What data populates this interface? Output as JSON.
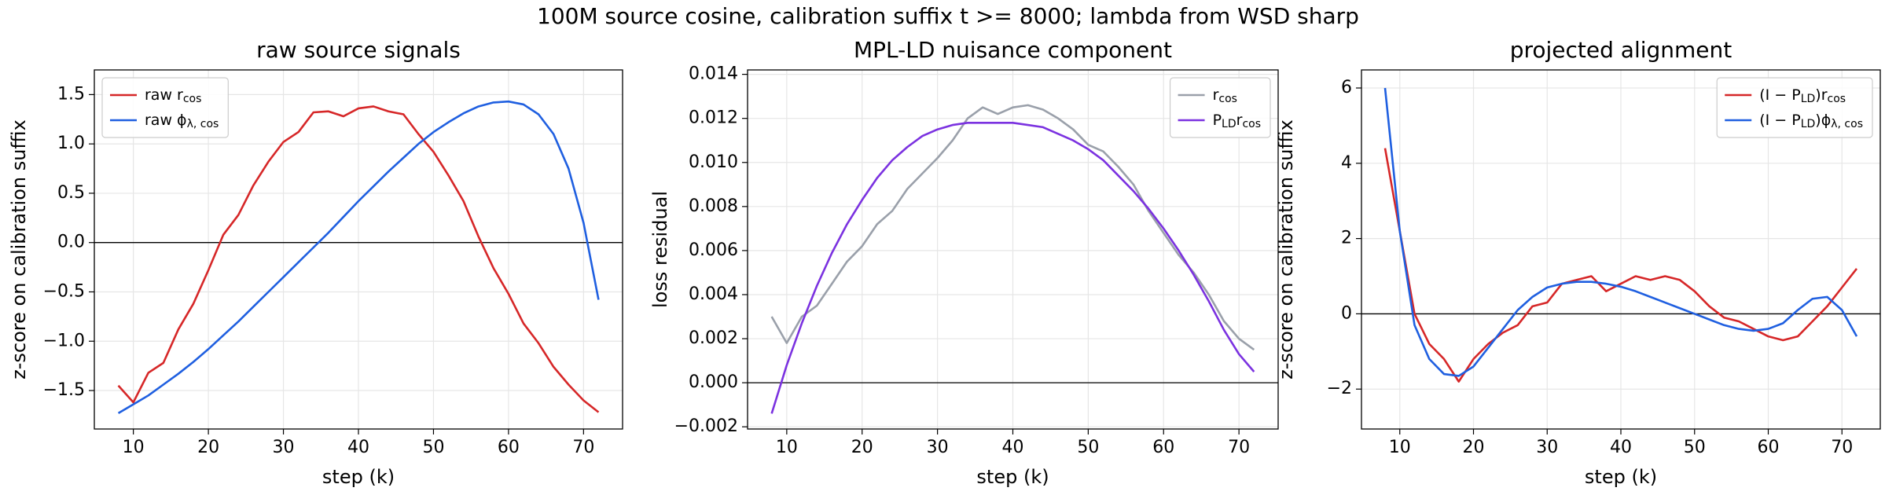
{
  "title": "100M source cosine, calibration suffix t >= 8000; lambda from WSD sharp",
  "chart_data": [
    {
      "type": "line",
      "title": "raw source signals",
      "xlabel": "step (k)",
      "ylabel": "z-score on calibration suffix",
      "x": [
        8,
        10,
        12,
        14,
        16,
        18,
        20,
        22,
        24,
        26,
        28,
        30,
        32,
        34,
        36,
        38,
        40,
        42,
        44,
        46,
        48,
        50,
        52,
        54,
        56,
        58,
        60,
        62,
        64,
        66,
        68,
        70,
        72
      ],
      "xlim": [
        4.8,
        75.2
      ],
      "xticks": [
        10,
        20,
        30,
        40,
        50,
        60,
        70
      ],
      "ylim": [
        -1.89,
        1.75
      ],
      "yticks": [
        {
          "value": -1.5,
          "label": "−1.5"
        },
        {
          "value": -1.0,
          "label": "−1.0"
        },
        {
          "value": -0.5,
          "label": "−0.5"
        },
        {
          "value": 0.0,
          "label": "0.0"
        },
        0.5,
        {
          "value": 1.0,
          "label": "1.0"
        },
        1.5
      ],
      "grid": true,
      "legend": "upper-left",
      "series": [
        {
          "name": [
            "raw r",
            "cos"
          ],
          "color": "#d62728",
          "values": [
            -1.45,
            -1.62,
            -1.32,
            -1.22,
            -0.88,
            -0.62,
            -0.28,
            0.08,
            0.28,
            0.58,
            0.82,
            1.02,
            1.12,
            1.32,
            1.33,
            1.28,
            1.36,
            1.38,
            1.33,
            1.3,
            1.1,
            0.92,
            0.68,
            0.42,
            0.06,
            -0.26,
            -0.52,
            -0.82,
            -1.02,
            -1.26,
            -1.44,
            -1.6,
            -1.72
          ]
        },
        {
          "name": [
            "raw ϕ",
            "λ, cos"
          ],
          "color": "#1f5fe0",
          "values": [
            -1.73,
            -1.64,
            -1.55,
            -1.44,
            -1.33,
            -1.21,
            -1.08,
            -0.94,
            -0.8,
            -0.65,
            -0.5,
            -0.35,
            -0.2,
            -0.05,
            0.1,
            0.26,
            0.42,
            0.57,
            0.72,
            0.86,
            1.0,
            1.12,
            1.22,
            1.31,
            1.38,
            1.42,
            1.43,
            1.4,
            1.3,
            1.1,
            0.75,
            0.2,
            -0.58
          ]
        }
      ]
    },
    {
      "type": "line",
      "title": "MPL-LD nuisance component",
      "xlabel": "step (k)",
      "ylabel": "loss residual",
      "x": [
        8,
        10,
        12,
        14,
        16,
        18,
        20,
        22,
        24,
        26,
        28,
        30,
        32,
        34,
        36,
        38,
        40,
        42,
        44,
        46,
        48,
        50,
        52,
        54,
        56,
        58,
        60,
        62,
        64,
        66,
        68,
        70,
        72
      ],
      "xlim": [
        4.8,
        75.2
      ],
      "xticks": [
        10,
        20,
        30,
        40,
        50,
        60,
        70
      ],
      "ylim": [
        -0.0021,
        0.0142
      ],
      "yticks": [
        {
          "value": -0.002,
          "label": "−0.002"
        },
        {
          "value": 0.0,
          "label": "0.000"
        },
        0.002,
        0.004,
        0.006,
        0.008,
        {
          "value": 0.01,
          "label": "0.010"
        },
        0.012,
        0.014
      ],
      "grid": true,
      "legend": "upper-right",
      "series": [
        {
          "name": [
            "r",
            "cos"
          ],
          "color": "#9aa0aa",
          "values": [
            0.003,
            0.0018,
            0.003,
            0.0035,
            0.0045,
            0.0055,
            0.0062,
            0.0072,
            0.0078,
            0.0088,
            0.0095,
            0.0102,
            0.011,
            0.012,
            0.0125,
            0.0122,
            0.0125,
            0.0126,
            0.0124,
            0.012,
            0.0115,
            0.0108,
            0.0105,
            0.0098,
            0.009,
            0.0078,
            0.0068,
            0.0058,
            0.005,
            0.004,
            0.0028,
            0.002,
            0.0015
          ]
        },
        {
          "name": [
            "P",
            "LD",
            "r",
            "cos"
          ],
          "color": "#7b32e0",
          "values": [
            -0.0014,
            0.0008,
            0.0027,
            0.0044,
            0.0059,
            0.0072,
            0.0083,
            0.0093,
            0.0101,
            0.0107,
            0.0112,
            0.0115,
            0.0117,
            0.0118,
            0.0118,
            0.0118,
            0.0118,
            0.0117,
            0.0116,
            0.0113,
            0.011,
            0.0106,
            0.0101,
            0.0094,
            0.0087,
            0.0079,
            0.007,
            0.006,
            0.0049,
            0.0037,
            0.0024,
            0.0013,
            0.0005
          ]
        }
      ]
    },
    {
      "type": "line",
      "title": "projected alignment",
      "xlabel": "step (k)",
      "ylabel": "z-score on calibration suffix",
      "x": [
        8,
        10,
        12,
        14,
        16,
        18,
        20,
        22,
        24,
        26,
        28,
        30,
        32,
        34,
        36,
        38,
        40,
        42,
        44,
        46,
        48,
        50,
        52,
        54,
        56,
        58,
        60,
        62,
        64,
        66,
        68,
        70,
        72
      ],
      "xlim": [
        4.8,
        75.2
      ],
      "xticks": [
        10,
        20,
        30,
        40,
        50,
        60,
        70
      ],
      "ylim": [
        -3.06,
        6.48
      ],
      "yticks": [
        {
          "value": -2,
          "label": "−2"
        },
        0,
        2,
        4,
        6
      ],
      "grid": true,
      "legend": "upper-right",
      "series": [
        {
          "name": [
            "(I − P",
            "LD",
            ")r",
            "cos"
          ],
          "color": "#d62728",
          "values": [
            4.4,
            2.2,
            0.0,
            -0.8,
            -1.2,
            -1.8,
            -1.2,
            -0.8,
            -0.5,
            -0.3,
            0.2,
            0.3,
            0.8,
            0.9,
            1.0,
            0.6,
            0.8,
            1.0,
            0.9,
            1.0,
            0.9,
            0.6,
            0.2,
            -0.1,
            -0.2,
            -0.4,
            -0.6,
            -0.7,
            -0.6,
            -0.2,
            0.2,
            0.7,
            1.2
          ]
        },
        {
          "name": [
            "(I − P",
            "LD",
            ")ϕ",
            "λ, cos"
          ],
          "color": "#1f5fe0",
          "values": [
            6.0,
            2.2,
            -0.3,
            -1.2,
            -1.6,
            -1.65,
            -1.4,
            -0.9,
            -0.4,
            0.1,
            0.45,
            0.7,
            0.8,
            0.85,
            0.85,
            0.8,
            0.72,
            0.6,
            0.45,
            0.3,
            0.15,
            0.0,
            -0.15,
            -0.3,
            -0.4,
            -0.45,
            -0.4,
            -0.25,
            0.1,
            0.4,
            0.45,
            0.1,
            -0.6
          ]
        }
      ]
    }
  ]
}
